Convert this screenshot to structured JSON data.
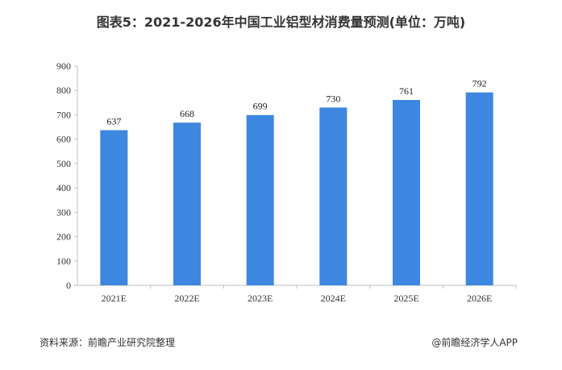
{
  "title": "图表5：2021-2026年中国工业铝型材消费量预测(单位：万吨)",
  "source": "资料来源：前瞻产业研究院整理",
  "credit": "@前瞻经济学人APP",
  "colors": {
    "bar": "#3d87e0",
    "axis": "#bfbfbf"
  },
  "chart_data": {
    "type": "bar",
    "title": "图表5：2021-2026年中国工业铝型材消费量预测(单位：万吨)",
    "categories": [
      "2021E",
      "2022E",
      "2023E",
      "2024E",
      "2025E",
      "2026E"
    ],
    "values": [
      637,
      668,
      699,
      730,
      761,
      792
    ],
    "ylim": [
      0,
      900
    ],
    "yticks": [
      0,
      100,
      200,
      300,
      400,
      500,
      600,
      700,
      800,
      900
    ],
    "grid": false,
    "data_labels": true
  }
}
